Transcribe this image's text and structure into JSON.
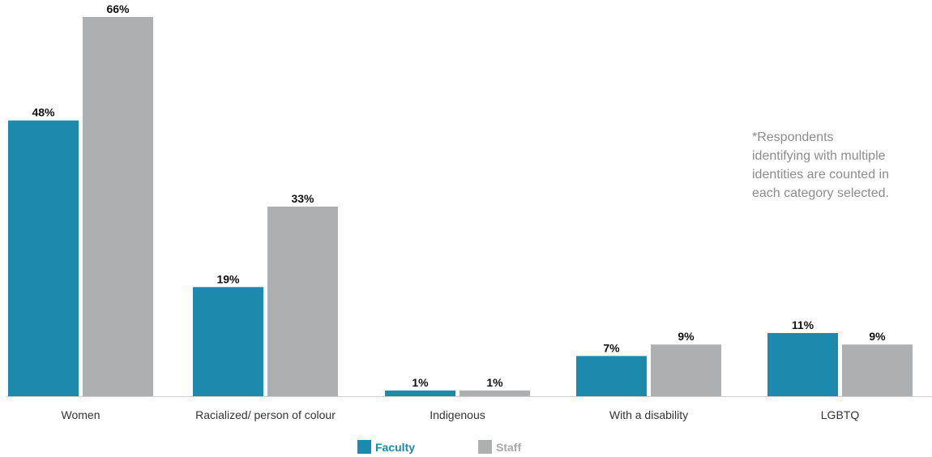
{
  "chart_data": {
    "type": "bar",
    "categories": [
      "Women",
      "Racialized/ person of colour",
      "Indigenous",
      "With a disability",
      "LGBTQ"
    ],
    "series": [
      {
        "name": "Faculty",
        "values": [
          48,
          19,
          1,
          7,
          11
        ],
        "labels": [
          "48%",
          "19%",
          "1%",
          "7%",
          "11%"
        ],
        "color": "#1b8aad"
      },
      {
        "name": "Staff",
        "values": [
          66,
          33,
          1,
          9,
          9
        ],
        "labels": [
          "66%",
          "33%",
          "1%",
          "9%",
          "9%"
        ],
        "color": "#aeafb1"
      }
    ],
    "ylim": [
      0,
      66
    ],
    "unit": "%",
    "grid": false,
    "legend_position": "bottom-center"
  },
  "note": {
    "lines": [
      "*Respondents",
      "identifying with multiple",
      "identities are counted in",
      "each category selected."
    ]
  },
  "legend": {
    "faculty_label": "Faculty",
    "staff_label": "Staff",
    "faculty_color": "#1b8aad",
    "staff_color": "#aeafb1",
    "staff_text_color": "#a8a8a8",
    "faculty_text_color": "#1b8aad"
  }
}
